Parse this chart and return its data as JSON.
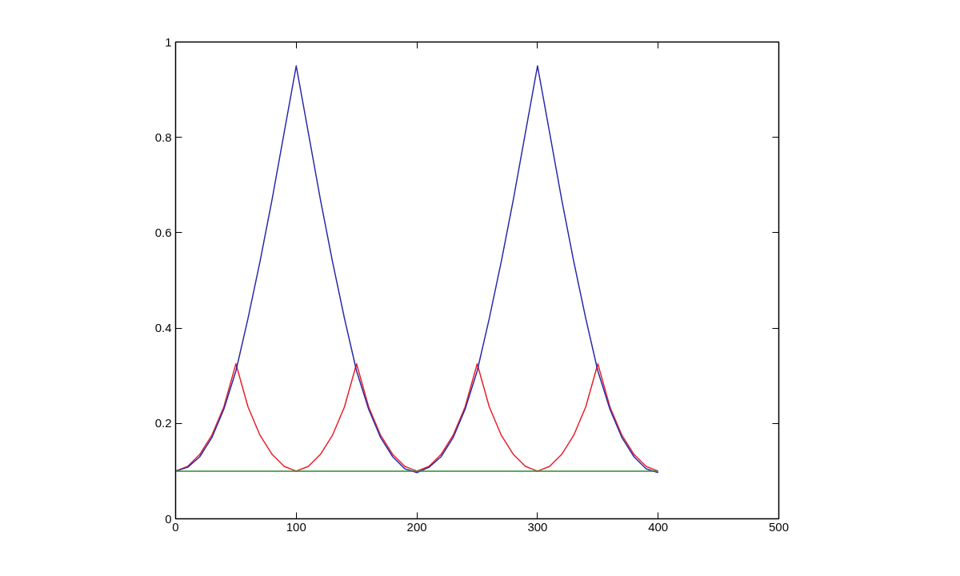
{
  "chart_data": {
    "type": "line",
    "xlim": [
      0,
      500
    ],
    "ylim": [
      0,
      1
    ],
    "xticks": [
      0,
      100,
      200,
      300,
      400,
      500
    ],
    "yticks": [
      0,
      0.2,
      0.4,
      0.6,
      0.8,
      1
    ],
    "grid": false,
    "line_style": "solid",
    "x": [
      0,
      10,
      20,
      30,
      40,
      50,
      60,
      70,
      80,
      90,
      100,
      110,
      120,
      130,
      140,
      150,
      160,
      170,
      180,
      190,
      200,
      210,
      220,
      230,
      240,
      250,
      260,
      270,
      280,
      290,
      300,
      310,
      320,
      330,
      340,
      350,
      360,
      370,
      380,
      390,
      400
    ],
    "series": [
      {
        "color": "#e8202a",
        "values": [
          0.1,
          0.11,
          0.135,
          0.175,
          0.235,
          0.325,
          0.235,
          0.175,
          0.135,
          0.11,
          0.1,
          0.11,
          0.135,
          0.175,
          0.235,
          0.325,
          0.235,
          0.175,
          0.135,
          0.11,
          0.1,
          0.11,
          0.135,
          0.175,
          0.235,
          0.325,
          0.235,
          0.175,
          0.135,
          0.11,
          0.1,
          0.11,
          0.135,
          0.175,
          0.235,
          0.325,
          0.235,
          0.175,
          0.135,
          0.11,
          0.1
        ]
      },
      {
        "color": "#2a2aa8",
        "values": [
          0.1,
          0.108,
          0.13,
          0.17,
          0.23,
          0.31,
          0.42,
          0.54,
          0.67,
          0.81,
          0.95,
          0.81,
          0.67,
          0.54,
          0.42,
          0.31,
          0.23,
          0.17,
          0.13,
          0.105,
          0.097,
          0.108,
          0.13,
          0.17,
          0.23,
          0.31,
          0.42,
          0.54,
          0.67,
          0.81,
          0.95,
          0.81,
          0.67,
          0.54,
          0.42,
          0.31,
          0.23,
          0.17,
          0.13,
          0.105,
          0.097
        ]
      },
      {
        "color": "#2a8a2a",
        "x": [
          0,
          400
        ],
        "values": [
          0.1,
          0.1
        ]
      }
    ]
  }
}
